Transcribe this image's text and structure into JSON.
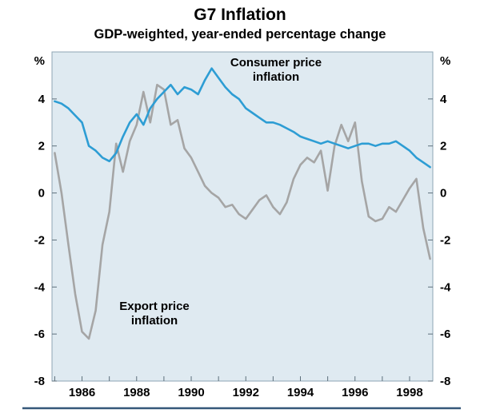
{
  "header": {
    "title": "G7 Inflation",
    "subtitle": "GDP-weighted, year-ended percentage change"
  },
  "annotations": {
    "consumer": {
      "line1": "Consumer price",
      "line2": "inflation"
    },
    "export": {
      "line1": "Export price",
      "line2": "inflation"
    }
  },
  "colors": {
    "consumer": "#2d9dd4",
    "export": "#a5a5a5",
    "plot_bg": "#dfeaf1",
    "frame": "#8fa6b4",
    "tick": "#5d6f7b",
    "label": "#000000",
    "baseline": "#35587a"
  },
  "chart_data": {
    "type": "line",
    "title": "G7 Inflation",
    "subtitle": "GDP-weighted, year-ended percentage change",
    "xlabel": "",
    "ylabel": "%",
    "unit_label": "%",
    "ylim": [
      -8,
      6
    ],
    "xlim": [
      1984.9,
      1998.85
    ],
    "yticks": [
      -8,
      -6,
      -4,
      -2,
      0,
      2,
      4
    ],
    "xticks": [
      1986,
      1988,
      1990,
      1992,
      1994,
      1996,
      1998
    ],
    "minor_xtick_start": 1985,
    "minor_xtick_end": 1998,
    "grid": false,
    "legend_position": "in-plot text annotations",
    "x_start": 1985.0,
    "x_step": 0.25,
    "series": [
      {
        "name": "Consumer price inflation",
        "color_key": "consumer",
        "values": [
          3.9,
          3.8,
          3.6,
          3.3,
          3.0,
          2.0,
          1.8,
          1.5,
          1.35,
          1.7,
          2.4,
          3.0,
          3.35,
          2.9,
          3.6,
          4.0,
          4.3,
          4.6,
          4.2,
          4.5,
          4.4,
          4.2,
          4.8,
          5.3,
          4.9,
          4.5,
          4.2,
          4.0,
          3.6,
          3.4,
          3.2,
          3.0,
          3.0,
          2.9,
          2.75,
          2.6,
          2.4,
          2.3,
          2.2,
          2.1,
          2.2,
          2.1,
          2.0,
          1.9,
          2.0,
          2.1,
          2.1,
          2.0,
          2.1,
          2.1,
          2.2,
          2.0,
          1.8,
          1.5,
          1.3,
          1.1
        ]
      },
      {
        "name": "Export price inflation",
        "color_key": "export",
        "values": [
          1.7,
          0.0,
          -2.2,
          -4.3,
          -5.9,
          -6.2,
          -5.0,
          -2.2,
          -0.8,
          2.1,
          0.9,
          2.2,
          2.9,
          4.3,
          3.0,
          4.6,
          4.4,
          2.9,
          3.1,
          1.9,
          1.5,
          0.9,
          0.3,
          0.0,
          -0.2,
          -0.6,
          -0.5,
          -0.9,
          -1.1,
          -0.7,
          -0.3,
          -0.1,
          -0.6,
          -0.9,
          -0.4,
          0.6,
          1.2,
          1.5,
          1.3,
          1.8,
          0.1,
          2.0,
          2.9,
          2.2,
          3.0,
          0.5,
          -1.0,
          -1.2,
          -1.1,
          -0.6,
          -0.8,
          -0.3,
          0.2,
          0.6,
          -1.5,
          -2.8
        ]
      }
    ]
  }
}
